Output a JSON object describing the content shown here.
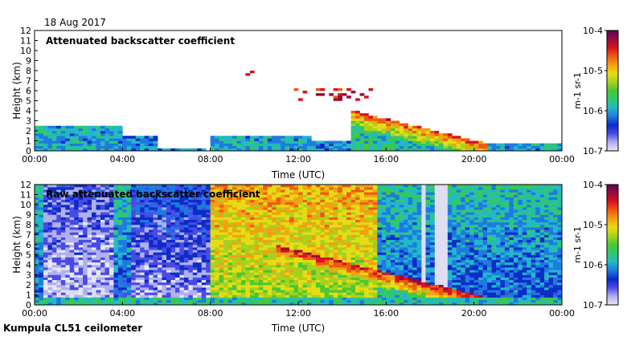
{
  "date_label": "18 Aug 2017",
  "footer_label": "Kumpula CL51 ceilometer",
  "colors": {
    "colormap": [
      "#e8e8f4",
      "#b0b0ee",
      "#4a4ae6",
      "#0b2cc8",
      "#1e7ae0",
      "#23b8c8",
      "#2ec870",
      "#48c832",
      "#a6d21e",
      "#e6dc14",
      "#f4a010",
      "#ee5a10",
      "#d8141e",
      "#9a0a3a",
      "#5a045a"
    ],
    "panel1_background": "#ffffff",
    "panel2_background": "#dedef0"
  },
  "chart_data": [
    {
      "type": "heatmap",
      "title": "Attenuated backscatter coefficient",
      "xlabel": "Time (UTC)",
      "ylabel": "Height (km)",
      "xlim": [
        0,
        24
      ],
      "ylim": [
        0,
        12
      ],
      "x_ticks": [
        "00:00",
        "04:00",
        "08:00",
        "12:00",
        "16:00",
        "20:00",
        "00:00"
      ],
      "y_ticks": [
        "0",
        "1",
        "2",
        "3",
        "4",
        "5",
        "6",
        "7",
        "8",
        "9",
        "10",
        "11",
        "12"
      ],
      "colorbar": {
        "scale": "log",
        "range": [
          1e-07,
          0.0001
        ],
        "tick_labels": [
          "10-7",
          "10-6",
          "10-5",
          "10-4"
        ],
        "label": "m-1 sr-1"
      },
      "features": [
        {
          "kind": "surface_layer",
          "t": [
            0,
            4
          ],
          "h": [
            0,
            2.5
          ],
          "level": 0.35
        },
        {
          "kind": "surface_layer",
          "t": [
            4,
            5.5
          ],
          "h": [
            0,
            1.5
          ],
          "level": 0.3
        },
        {
          "kind": "surface_layer",
          "t": [
            5.5,
            7.8
          ],
          "h": [
            0,
            0.3
          ],
          "level": 0.3
        },
        {
          "kind": "boundary_layer",
          "t": [
            8,
            12.5
          ],
          "h": [
            0,
            1.6
          ],
          "level": 0.35
        },
        {
          "kind": "boundary_layer",
          "t": [
            12.5,
            15.5
          ],
          "h": [
            0,
            1.0
          ],
          "level": 0.3
        },
        {
          "kind": "boundary_layer",
          "t": [
            15.5,
            24
          ],
          "h": [
            0,
            0.8
          ],
          "level": 0.35
        },
        {
          "kind": "descending_cloud",
          "t": [
            14.5,
            20.5
          ],
          "h_start": 4.0,
          "h_end": 0.8,
          "level": 0.8
        },
        {
          "kind": "cloud_fragments",
          "t": [
            11.8,
            15.5
          ],
          "h": [
            5.0,
            6.2
          ],
          "level": 0.85
        },
        {
          "kind": "cloud_fragments",
          "t": [
            9.5,
            10.0
          ],
          "h": [
            7.5,
            8.2
          ],
          "level": 0.75
        }
      ]
    },
    {
      "type": "heatmap",
      "title": "Raw attenuated backscatter coefficient",
      "xlabel": "Time (UTC)",
      "ylabel": "Height (km)",
      "xlim": [
        0,
        24
      ],
      "ylim": [
        0,
        12
      ],
      "x_ticks": [
        "00:00",
        "04:00",
        "08:00",
        "12:00",
        "16:00",
        "20:00",
        "00:00"
      ],
      "y_ticks": [
        "0",
        "1",
        "2",
        "3",
        "4",
        "5",
        "6",
        "7",
        "8",
        "9",
        "10",
        "11",
        "12"
      ],
      "colorbar": {
        "scale": "log",
        "range": [
          1e-07,
          0.0001
        ],
        "tick_labels": [
          "10-7",
          "10-6",
          "10-5",
          "10-4"
        ],
        "label": "m-1 sr-1"
      },
      "features": [
        {
          "kind": "noise_field",
          "t": [
            0,
            24
          ],
          "h": [
            0,
            12
          ],
          "level": 0.25
        },
        {
          "kind": "low_noise_band",
          "t": [
            0.5,
            3.5
          ],
          "h": [
            0,
            12
          ],
          "level": 0.05
        },
        {
          "kind": "low_noise_band",
          "t": [
            4.5,
            8.0
          ],
          "h": [
            0,
            12
          ],
          "level": 0.1
        },
        {
          "kind": "high_noise_band",
          "t": [
            8.0,
            15.5
          ],
          "h": [
            0,
            12
          ],
          "level": 0.55
        },
        {
          "kind": "white_gap",
          "t": [
            17.6,
            17.8
          ],
          "h": [
            0,
            12
          ],
          "level": 0.0
        },
        {
          "kind": "white_gap",
          "t": [
            18.2,
            18.9
          ],
          "h": [
            0,
            12
          ],
          "level": 0.0
        },
        {
          "kind": "descending_cloud",
          "t": [
            11.0,
            20.5
          ],
          "h_start": 6.0,
          "h_end": 0.8,
          "level": 0.85
        },
        {
          "kind": "surface_layer",
          "t": [
            0,
            24
          ],
          "h": [
            0,
            0.7
          ],
          "level": 0.4
        }
      ]
    }
  ]
}
